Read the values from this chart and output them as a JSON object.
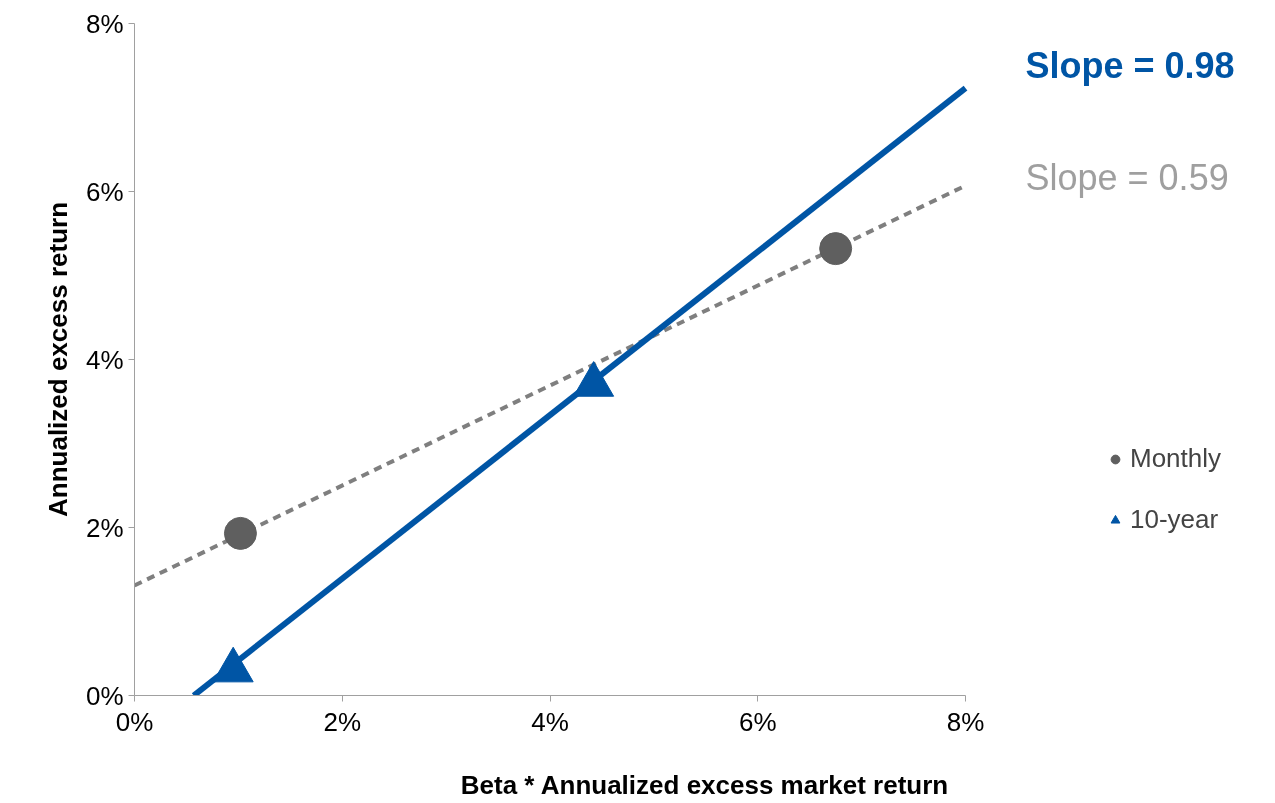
{
  "chart_data": {
    "type": "scatter",
    "xlabel": "Beta * Annualized excess market return",
    "ylabel": "Annualized excess return",
    "xlim": [
      0,
      8
    ],
    "ylim": [
      0,
      8
    ],
    "xticks": [
      {
        "value": 0,
        "label": "0%"
      },
      {
        "value": 2,
        "label": "2%"
      },
      {
        "value": 4,
        "label": "4%"
      },
      {
        "value": 6,
        "label": "6%"
      },
      {
        "value": 8,
        "label": "8%"
      }
    ],
    "yticks": [
      {
        "value": 0,
        "label": "0%"
      },
      {
        "value": 2,
        "label": "2%"
      },
      {
        "value": 4,
        "label": "4%"
      },
      {
        "value": 6,
        "label": "6%"
      },
      {
        "value": 8,
        "label": "8%"
      }
    ],
    "grid": false,
    "legend": "right",
    "annotations": [
      "Slope = 0.98",
      "Slope = 0.59"
    ],
    "series": [
      {
        "type": "line",
        "color": "#7f7f7f",
        "line_style": "dashed",
        "marker": "none",
        "x": [
          0,
          8
        ],
        "values": [
          1.31,
          6.07
        ]
      },
      {
        "type": "line",
        "color": "#0055a5",
        "line_style": "solid",
        "marker": "none",
        "x": [
          0.57,
          8
        ],
        "values": [
          0,
          7.23
        ]
      },
      {
        "name": "Monthly",
        "color": "#5f5f5f",
        "marker": "circle",
        "x": [
          1.02,
          6.75
        ],
        "values": [
          1.93,
          5.32
        ]
      },
      {
        "name": "10-year",
        "color": "#0055a5",
        "marker": "triangle",
        "x": [
          0.95,
          4.42
        ],
        "values": [
          0.3,
          3.7
        ]
      }
    ]
  }
}
